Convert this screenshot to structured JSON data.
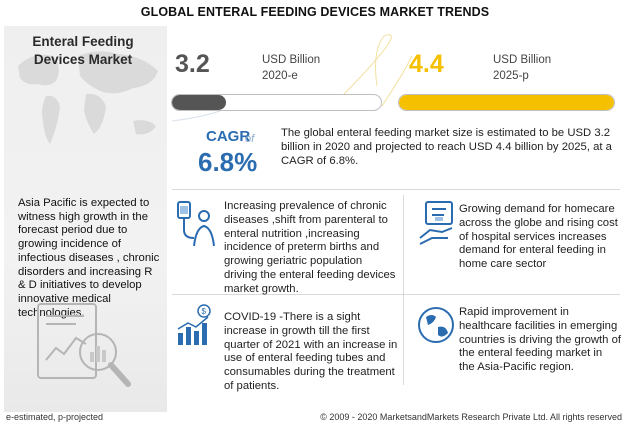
{
  "title": "GLOBAL ENTERAL FEEDING DEVICES MARKET TRENDS",
  "left_panel": {
    "heading_line1": "Enteral Feeding",
    "heading_line2": "Devices  Market",
    "text": "Asia Pacific is expected to witness high growth in the forecast period due to growing incidence of infectious diseases , chronic disorders and increasing R & D initiatives to develop innovative medical technologies."
  },
  "value_2020": {
    "number": "3.2",
    "unit": "USD Billion",
    "year": "2020-e",
    "fill_fraction": 0.26,
    "color": "#555555"
  },
  "value_2025": {
    "number": "4.4",
    "unit": "USD Billion",
    "year": "2025-p",
    "fill_fraction": 1.0,
    "color": "#f5c000"
  },
  "cagr": {
    "label": "CAGR",
    "of": "of",
    "value": "6.8%"
  },
  "market_text": "The global enteral feeding market size is estimated to be USD 3.2 billion in 2020 and projected to reach USD 4.4  billion by 2025, at a CAGR of 6.8%.",
  "drivers": [
    {
      "icon": "patient-drip-icon",
      "text": "Increasing prevalence of chronic diseases ,shift from parenteral to enteral nutrition ,increasing incidence of preterm births and growing geriatric population driving the enteral feeding devices market growth."
    },
    {
      "icon": "hospital-bill-icon",
      "text": "Growing demand for homecare across the globe and rising cost of hospital services increases demand for enteral feeding in home care sector"
    },
    {
      "icon": "growth-chart-icon",
      "text": "COVID-19 -There is a sight increase in growth till the first quarter of 2021 with an increase in use of enteral feeding tubes and consumables during the treatment of patients."
    },
    {
      "icon": "globe-icon",
      "text": "Rapid improvement in healthcare facilities in emerging countries is driving the growth of the enteral feeding market in the Asia-Pacific region."
    }
  ],
  "footer": {
    "left": "e-estimated, p-projected",
    "right": "© 2009 - 2020 MarketsandMarkets Research Private Ltd. All rights reserved"
  },
  "colors": {
    "accent_blue": "#2b6cb0",
    "yellow": "#f5c000",
    "dark_gray": "#555555"
  }
}
